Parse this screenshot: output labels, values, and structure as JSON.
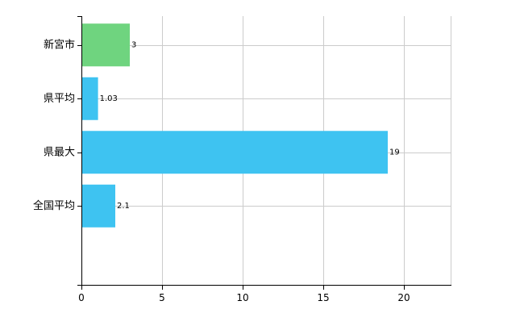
{
  "chart_data": {
    "type": "bar",
    "orientation": "horizontal",
    "categories": [
      "新宮市",
      "県平均",
      "県最大",
      "全国平均"
    ],
    "values": [
      3,
      1.03,
      19,
      2.1
    ],
    "data_labels": [
      "3",
      "1.03",
      "19",
      "2.1"
    ],
    "bar_colors": [
      "#6fd47f",
      "#3ec3f1",
      "#3ec3f1",
      "#3ec3f1"
    ],
    "xlim": [
      0,
      22.9
    ],
    "xticks": [
      0,
      5,
      10,
      15,
      20
    ],
    "xtick_labels": [
      "0",
      "5",
      "10",
      "15",
      "20"
    ],
    "title": "",
    "xlabel": "",
    "ylabel": "",
    "grid": true,
    "legend": false
  },
  "colors": {
    "grid": "#cccccc",
    "axis": "#000000"
  }
}
